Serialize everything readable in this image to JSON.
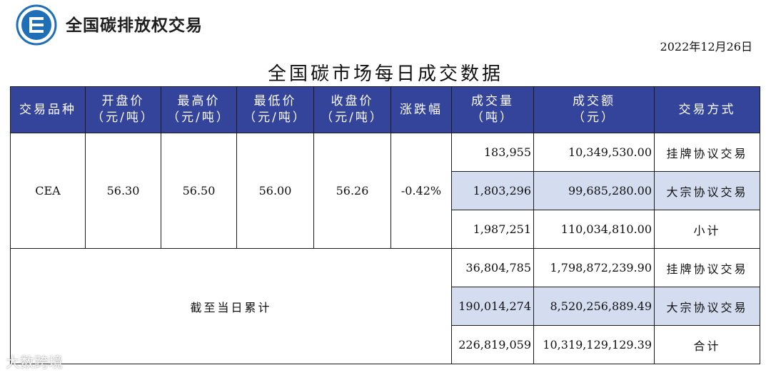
{
  "brand": {
    "name": "全国碳排放权交易"
  },
  "date": "2022年12月26日",
  "title": "全国碳市场每日成交数据",
  "headers": [
    {
      "l1": "交易品种",
      "l2": ""
    },
    {
      "l1": "开盘价",
      "l2": "（元/吨）"
    },
    {
      "l1": "最高价",
      "l2": "（元/吨）"
    },
    {
      "l1": "最低价",
      "l2": "（元/吨）"
    },
    {
      "l1": "收盘价",
      "l2": "（元/吨）"
    },
    {
      "l1": "涨跌幅",
      "l2": ""
    },
    {
      "l1": "成交量",
      "l2": "（吨）"
    },
    {
      "l1": "成交额",
      "l2": "（元）"
    },
    {
      "l1": "交易方式",
      "l2": ""
    }
  ],
  "daily": {
    "product": "CEA",
    "open": "56.30",
    "high": "56.50",
    "low": "56.00",
    "close": "56.26",
    "change": "-0.42%",
    "rows": [
      {
        "volume": "183,955",
        "amount": "10,349,530.00",
        "method": "挂牌协议交易"
      },
      {
        "volume": "1,803,296",
        "amount": "99,685,280.00",
        "method": "大宗协议交易"
      },
      {
        "volume": "1,987,251",
        "amount": "110,034,810.00",
        "method": "小计"
      }
    ]
  },
  "cumulative": {
    "label": "截至当日累计",
    "rows": [
      {
        "volume": "36,804,785",
        "amount": "1,798,872,239.90",
        "method": "挂牌协议交易"
      },
      {
        "volume": "190,014,274",
        "amount": "8,520,256,889.49",
        "method": "大宗协议交易"
      },
      {
        "volume": "226,819,059",
        "amount": "10,319,129,129.39",
        "method": "合计"
      }
    ]
  },
  "watermark": "大数跨境",
  "colors": {
    "header_bg": "#34449a",
    "highlight": "#d4dcf0",
    "logo": "#1e6fb8"
  }
}
